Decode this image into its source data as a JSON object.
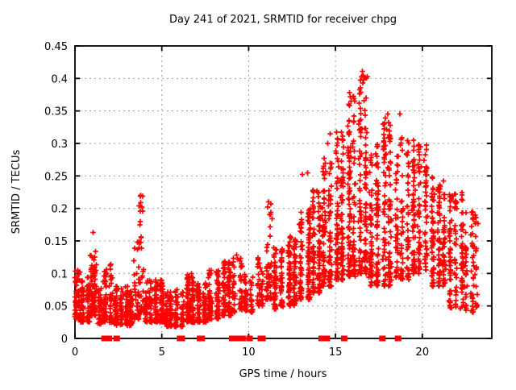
{
  "title": "Day 241 of 2021, SRMTID for receiver chpg",
  "chart_data": {
    "type": "scatter",
    "title": "Day 241 of 2021, SRMTID for receiver chpg",
    "xlabel": "GPS time / hours",
    "ylabel": "SRMTID / TECUs",
    "xlim": [
      0,
      24
    ],
    "ylim": [
      0,
      0.45
    ],
    "grid": true,
    "legend": "none",
    "marker": "plus",
    "marker_color": "#ff0000",
    "grid_color": "#a0a0a0",
    "xticks": {
      "values": [
        0,
        5,
        10,
        15,
        20
      ],
      "labels": [
        "0",
        "5",
        "10",
        "15",
        "20"
      ]
    },
    "yticks": {
      "values": [
        0,
        0.05,
        0.1,
        0.15,
        0.2,
        0.25,
        0.3,
        0.35,
        0.4,
        0.45
      ],
      "labels": [
        "0",
        "0.05",
        "0.1",
        "0.15",
        "0.2",
        "0.25",
        "0.3",
        "0.35",
        "0.4",
        "0.45"
      ]
    },
    "seed": 241,
    "clusters": [
      [
        0.0,
        0.3,
        0.03,
        0.105,
        60,
        1.4
      ],
      [
        0.3,
        0.9,
        0.025,
        0.095,
        90,
        1.5
      ],
      [
        0.8,
        1.3,
        0.035,
        0.135,
        80,
        1.8
      ],
      [
        1.3,
        1.6,
        0.02,
        0.08,
        40,
        1.3
      ],
      [
        1.6,
        2.2,
        0.025,
        0.115,
        90,
        1.6
      ],
      [
        2.2,
        3.4,
        0.02,
        0.08,
        150,
        1.5
      ],
      [
        3.4,
        3.7,
        0.03,
        0.15,
        40,
        2.0
      ],
      [
        3.7,
        3.95,
        0.04,
        0.22,
        28,
        2.2
      ],
      [
        3.9,
        5.1,
        0.025,
        0.09,
        170,
        1.5
      ],
      [
        5.1,
        6.3,
        0.018,
        0.075,
        140,
        1.4
      ],
      [
        6.3,
        7.0,
        0.025,
        0.1,
        110,
        1.7
      ],
      [
        7.0,
        7.6,
        0.025,
        0.085,
        90,
        1.5
      ],
      [
        7.6,
        8.4,
        0.03,
        0.105,
        110,
        1.6
      ],
      [
        8.4,
        9.0,
        0.035,
        0.12,
        90,
        1.6
      ],
      [
        9.0,
        9.7,
        0.04,
        0.128,
        55,
        1.4
      ],
      [
        9.7,
        10.4,
        0.04,
        0.1,
        55,
        1.3
      ],
      [
        10.4,
        10.9,
        0.05,
        0.13,
        40,
        1.5
      ],
      [
        10.9,
        11.35,
        0.06,
        0.21,
        42,
        1.7
      ],
      [
        11.35,
        12.1,
        0.045,
        0.14,
        90,
        1.5
      ],
      [
        12.1,
        12.9,
        0.05,
        0.16,
        110,
        1.5
      ],
      [
        12.9,
        13.6,
        0.06,
        0.2,
        110,
        1.6
      ],
      [
        13.6,
        14.2,
        0.07,
        0.23,
        110,
        1.5
      ],
      [
        14.2,
        14.9,
        0.08,
        0.28,
        130,
        1.5
      ],
      [
        14.9,
        15.6,
        0.09,
        0.33,
        130,
        1.6
      ],
      [
        15.6,
        16.2,
        0.095,
        0.38,
        120,
        1.6
      ],
      [
        16.2,
        16.9,
        0.1,
        0.415,
        120,
        1.6
      ],
      [
        16.9,
        17.6,
        0.08,
        0.3,
        120,
        1.4
      ],
      [
        17.6,
        18.4,
        0.08,
        0.345,
        120,
        1.5
      ],
      [
        18.4,
        19.3,
        0.09,
        0.31,
        120,
        1.4
      ],
      [
        19.3,
        20.4,
        0.1,
        0.3,
        150,
        1.5
      ],
      [
        20.4,
        21.4,
        0.08,
        0.25,
        150,
        1.4
      ],
      [
        21.4,
        22.4,
        0.045,
        0.23,
        130,
        1.3
      ],
      [
        22.4,
        23.3,
        0.04,
        0.195,
        80,
        1.2
      ]
    ],
    "outliers": [
      [
        1.05,
        0.163
      ],
      [
        3.78,
        0.22
      ],
      [
        3.79,
        0.209
      ],
      [
        3.76,
        0.196
      ],
      [
        9.3,
        0.128
      ],
      [
        9.35,
        0.122
      ],
      [
        11.15,
        0.21
      ],
      [
        11.1,
        0.202
      ],
      [
        11.2,
        0.19
      ],
      [
        13.1,
        0.252
      ],
      [
        13.4,
        0.255
      ],
      [
        14.55,
        0.3
      ],
      [
        14.7,
        0.315
      ],
      [
        15.8,
        0.358
      ],
      [
        15.85,
        0.372
      ],
      [
        15.9,
        0.365
      ],
      [
        16.5,
        0.403
      ],
      [
        16.55,
        0.411
      ],
      [
        16.6,
        0.405
      ],
      [
        16.62,
        0.398
      ],
      [
        16.58,
        0.393
      ],
      [
        17.95,
        0.322
      ],
      [
        18.0,
        0.345
      ],
      [
        18.05,
        0.332
      ],
      [
        18.7,
        0.345
      ],
      [
        19.5,
        0.305
      ],
      [
        19.9,
        0.295
      ],
      [
        22.9,
        0.19
      ]
    ],
    "zero_markers": [
      1.7,
      1.8,
      1.95,
      2.4,
      6.05,
      6.15,
      7.2,
      7.3,
      9.05,
      9.2,
      9.35,
      9.55,
      9.65,
      10.05,
      10.7,
      10.8,
      14.2,
      14.35,
      14.5,
      15.5,
      17.7,
      18.6
    ]
  }
}
